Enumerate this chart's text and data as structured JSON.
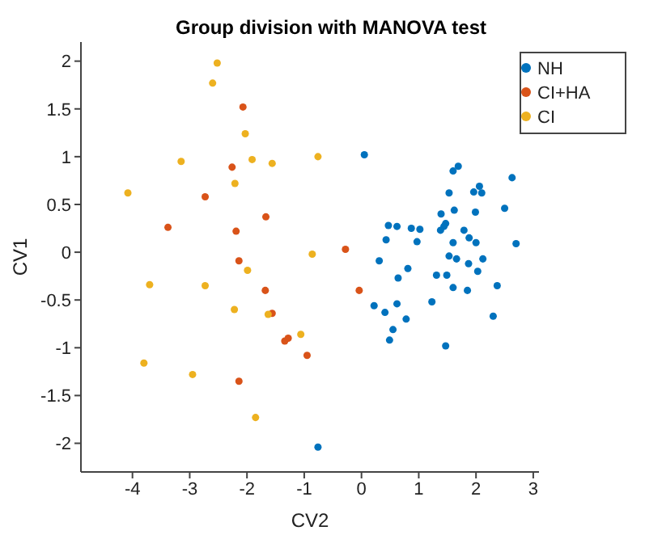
{
  "chart_data": {
    "type": "scatter",
    "title": "Group division with MANOVA test",
    "xlabel": "CV2",
    "ylabel": "CV1",
    "xlim": [
      -4.9,
      3.1
    ],
    "ylim": [
      -2.3,
      2.2
    ],
    "xticks": [
      -4,
      -3,
      -2,
      -1,
      0,
      1,
      2,
      3
    ],
    "yticks": [
      -2,
      -1.5,
      -1,
      -0.5,
      0,
      0.5,
      1,
      1.5,
      2
    ],
    "grid": false,
    "legend": "top right",
    "marker": "circle",
    "series": [
      {
        "name": "NH",
        "color": "#0072bd",
        "x": [
          -0.76,
          0.05,
          1.6,
          1.69,
          2.63,
          1.53,
          1.96,
          2.06,
          2.1,
          1.62,
          1.99,
          2.5,
          1.39,
          1.47,
          1.44,
          1.38,
          0.47,
          0.62,
          0.87,
          1.02,
          0.43,
          0.97,
          1.79,
          1.88,
          1.6,
          2.0,
          2.7,
          0.31,
          1.53,
          1.66,
          2.12,
          1.87,
          0.81,
          2.03,
          0.64,
          1.31,
          1.49,
          2.37,
          1.6,
          1.85,
          1.23,
          0.22,
          0.62,
          0.41,
          0.78,
          2.3,
          0.55,
          0.49,
          1.47
        ],
        "values": [
          -2.04,
          1.02,
          0.85,
          0.9,
          0.78,
          0.62,
          0.63,
          0.69,
          0.62,
          0.44,
          0.42,
          0.46,
          0.4,
          0.3,
          0.27,
          0.23,
          0.28,
          0.27,
          0.25,
          0.24,
          0.13,
          0.11,
          0.23,
          0.15,
          0.1,
          0.1,
          0.09,
          -0.09,
          -0.04,
          -0.07,
          -0.07,
          -0.12,
          -0.17,
          -0.2,
          -0.27,
          -0.24,
          -0.24,
          -0.35,
          -0.37,
          -0.4,
          -0.52,
          -0.56,
          -0.54,
          -0.63,
          -0.7,
          -0.67,
          -0.81,
          -0.92,
          -0.98
        ]
      },
      {
        "name": "CI+HA",
        "color": "#d95319",
        "x": [
          -2.07,
          -2.26,
          -2.73,
          -1.67,
          -3.38,
          -2.19,
          -2.14,
          -1.68,
          -1.56,
          -1.34,
          -1.28,
          -0.95,
          -2.14,
          -0.28,
          -0.04
        ],
        "values": [
          1.52,
          0.89,
          0.58,
          0.37,
          0.26,
          0.22,
          -0.09,
          -0.4,
          -0.64,
          -0.93,
          -0.9,
          -1.08,
          -1.35,
          0.03,
          -0.4
        ]
      },
      {
        "name": "CI",
        "color": "#edb120",
        "x": [
          -2.52,
          -2.6,
          -2.03,
          -3.15,
          -1.91,
          -1.56,
          -2.21,
          -4.08,
          -0.76,
          -0.86,
          -3.7,
          -2.73,
          -1.99,
          -2.22,
          -1.63,
          -1.06,
          -3.8,
          -2.95,
          -1.85
        ],
        "values": [
          1.98,
          1.77,
          1.24,
          0.95,
          0.97,
          0.93,
          0.72,
          0.62,
          1.0,
          -0.02,
          -0.34,
          -0.35,
          -0.19,
          -0.6,
          -0.65,
          -0.86,
          -1.16,
          -1.28,
          -1.73
        ]
      }
    ]
  }
}
